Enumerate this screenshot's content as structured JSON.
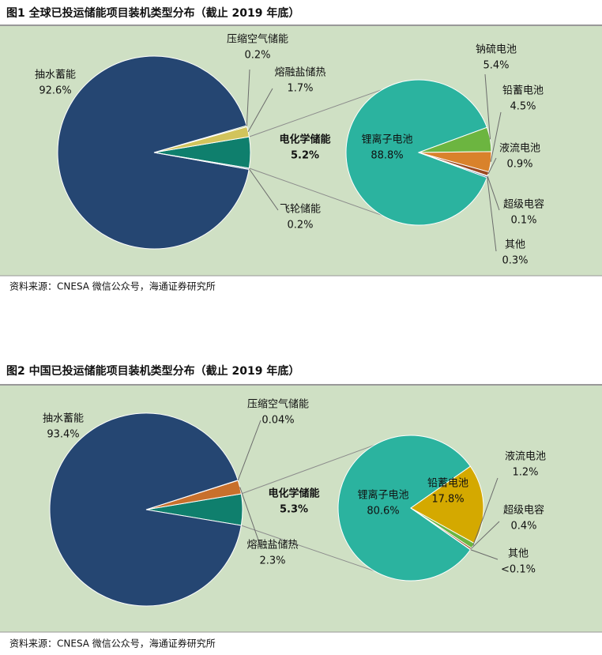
{
  "chart_data": [
    {
      "type": "pie-of-pie",
      "title": "图1  全球已投运储能项目装机类型分布（截止 2019 年底）",
      "source": "资料来源：CNESA 微信公众号，海通证券研究所",
      "detail_slice": 0,
      "detail_label_color": "#c00000",
      "main": {
        "categories": [
          "电化学储能",
          "熔融盐储热",
          "压缩空气储能",
          "抽水蓄能",
          "飞轮储能"
        ],
        "values": [
          5.2,
          1.7,
          0.2,
          92.6,
          0.2
        ],
        "value_labels": [
          "5.2%",
          "1.7%",
          "0.2%",
          "92.6%",
          "0.2%"
        ],
        "colors": [
          "#0f7f6d",
          "#d2c45c",
          "#8fb04a",
          "#254672",
          "#6d8fb0"
        ]
      },
      "sub": {
        "categories": [
          "锂离子电池",
          "钠硫电池",
          "铅蓄电池",
          "液流电池",
          "超级电容",
          "其他"
        ],
        "values": [
          88.8,
          5.4,
          4.5,
          0.9,
          0.1,
          0.3
        ],
        "value_labels": [
          "88.8%",
          "5.4%",
          "4.5%",
          "0.9%",
          "0.1%",
          "0.3%"
        ],
        "colors": [
          "#2bb39f",
          "#6cb540",
          "#d9822b",
          "#9c4a22",
          "#7a7a7a",
          "#3d5f8f"
        ]
      }
    },
    {
      "type": "pie-of-pie",
      "title": "图2  中国已投运储能项目装机类型分布（截止 2019 年底）",
      "source": "资料来源：CNESA 微信公众号，海通证券研究所",
      "detail_slice": 0,
      "detail_label_color": "#c00000",
      "main": {
        "categories": [
          "电化学储能",
          "熔融盐储热",
          "压缩空气储能",
          "抽水蓄能"
        ],
        "values": [
          5.3,
          2.3,
          0.04,
          93.4
        ],
        "value_labels": [
          "5.3%",
          "2.3%",
          "0.04%",
          "93.4%"
        ],
        "colors": [
          "#0f7f6d",
          "#c8702c",
          "#8fb04a",
          "#254672"
        ]
      },
      "sub": {
        "categories": [
          "锂离子电池",
          "铅蓄电池",
          "液流电池",
          "超级电容",
          "其他"
        ],
        "values": [
          80.6,
          17.8,
          1.2,
          0.4,
          0.05
        ],
        "value_labels": [
          "80.6%",
          "17.8%",
          "1.2%",
          "0.4%",
          "<0.1%"
        ],
        "colors": [
          "#2bb39f",
          "#d4a900",
          "#6cb540",
          "#9c4a22",
          "#7a7a7a"
        ]
      }
    }
  ]
}
